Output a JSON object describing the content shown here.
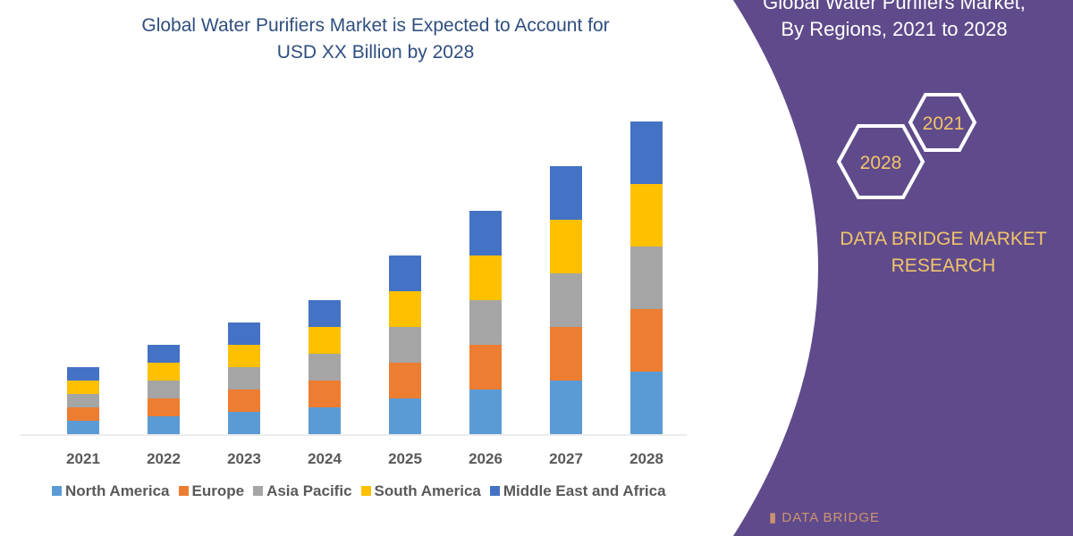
{
  "chart_data": {
    "type": "bar",
    "stacked": true,
    "title": "Global Water Purifiers Market is Expected to Account for USD XX Billion by 2028",
    "title_lines": [
      "Global Water Purifiers Market is Expected to Account for",
      "USD XX Billion by 2028"
    ],
    "categories": [
      "2021",
      "2022",
      "2023",
      "2024",
      "2025",
      "2026",
      "2027",
      "2028"
    ],
    "series": [
      {
        "name": "North America",
        "color": "#5b9bd5",
        "values": [
          1.5,
          2,
          2.5,
          3,
          4,
          5,
          6,
          7
        ]
      },
      {
        "name": "Europe",
        "color": "#ed7d31",
        "values": [
          1.5,
          2,
          2.5,
          3,
          4,
          5,
          6,
          7
        ]
      },
      {
        "name": "Asia Pacific",
        "color": "#a5a5a5",
        "values": [
          1.5,
          2,
          2.5,
          3,
          4,
          5,
          6,
          7
        ]
      },
      {
        "name": "South America",
        "color": "#ffc000",
        "values": [
          1.5,
          2,
          2.5,
          3,
          4,
          5,
          6,
          7
        ]
      },
      {
        "name": "Middle East and Africa",
        "color": "#4472c4",
        "values": [
          1.5,
          2,
          2.5,
          3,
          4,
          5,
          6,
          7
        ]
      }
    ],
    "ylim": [
      0,
      35
    ],
    "y_axis_shown": false,
    "grid": false,
    "legend_position": "bottom"
  },
  "side_panel": {
    "title_lines": [
      "Global Water Purifiers Market,",
      "By Regions, 2021 to 2028"
    ],
    "hex_labels": [
      "2021",
      "2028"
    ],
    "brand_lines": [
      "DATA BRIDGE MARKET",
      "RESEARCH"
    ],
    "logo_text": "DATA BRIDGE",
    "color": "#5f4b8b",
    "brand_color": "#f2c46a"
  }
}
